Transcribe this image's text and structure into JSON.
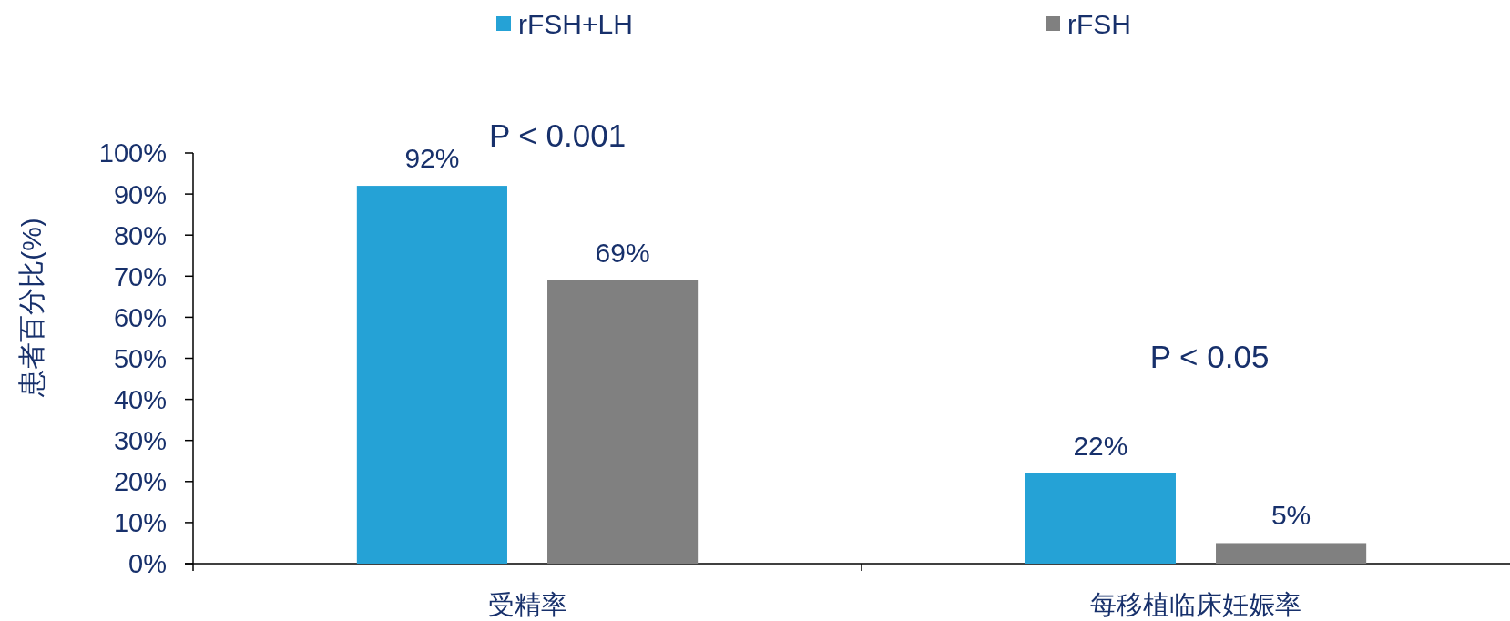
{
  "chart_data": {
    "type": "bar",
    "ylabel": "患者百分比(%)",
    "categories": [
      "受精率",
      "每移植临床妊娠率"
    ],
    "series": [
      {
        "name": "rFSH+LH",
        "color": "#25a2d6",
        "values": [
          92,
          22
        ],
        "value_labels": [
          "92%",
          "22%"
        ]
      },
      {
        "name": "rFSH",
        "color": "#808080",
        "values": [
          69,
          5
        ],
        "value_labels": [
          "69%",
          "5%"
        ]
      }
    ],
    "ylim": [
      0,
      100
    ],
    "yticks": [
      {
        "value": 0,
        "label": "0%"
      },
      {
        "value": 10,
        "label": "10%"
      },
      {
        "value": 20,
        "label": "20%"
      },
      {
        "value": 30,
        "label": "30%"
      },
      {
        "value": 40,
        "label": "40%"
      },
      {
        "value": 50,
        "label": "50%"
      },
      {
        "value": 60,
        "label": "60%"
      },
      {
        "value": 70,
        "label": "70%"
      },
      {
        "value": 80,
        "label": "80%"
      },
      {
        "value": 90,
        "label": "90%"
      },
      {
        "value": 100,
        "label": "100%"
      }
    ],
    "legend": "top",
    "annotations": [
      "P < 0.001",
      "P < 0.05"
    ]
  }
}
